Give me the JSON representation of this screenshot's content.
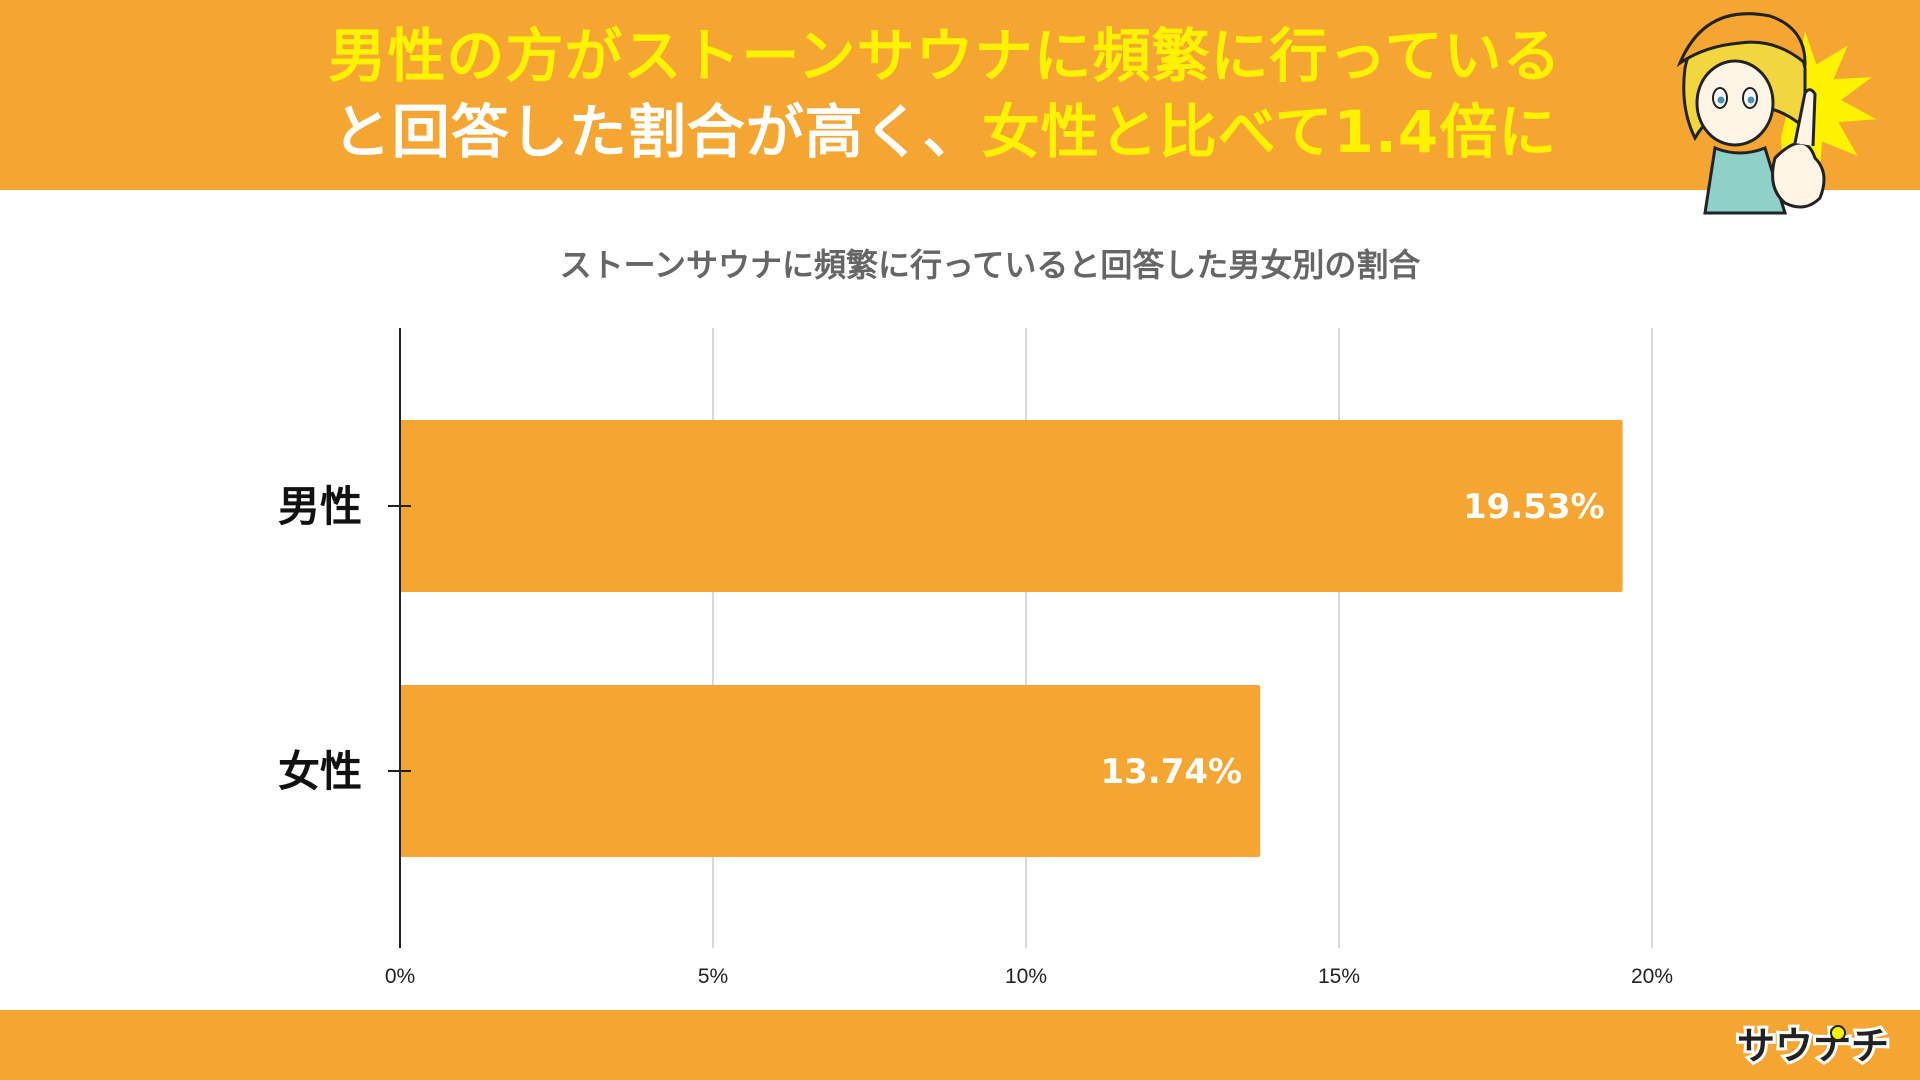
{
  "header": {
    "line1": "男性の方がストーンサウナに頻繁に行っている",
    "line2_white": "と回答した割合が高く、",
    "line2_yellow": "女性と比べて1.4倍に"
  },
  "colors": {
    "accent": "#F4A532",
    "headline_yellow": "#FFF200",
    "title_gray": "#666666"
  },
  "mascot": {
    "icon": "pointing-girl-mascot-icon"
  },
  "logo": {
    "text": "サウナチ",
    "icon": "sauna-logo-icon"
  },
  "chart_data": {
    "type": "bar",
    "orientation": "horizontal",
    "title": "ストーンサウナに頻繁に行っていると回答した男女別の割合",
    "categories": [
      "男性",
      "女性"
    ],
    "values": [
      19.53,
      13.74
    ],
    "value_labels": [
      "19.53%",
      "13.74%"
    ],
    "xlim": [
      0,
      20
    ],
    "xticks": [
      "0%",
      "5%",
      "10%",
      "15%",
      "20%"
    ],
    "xtick_values": [
      0,
      5,
      10,
      15,
      20
    ],
    "grid": true,
    "bar_color": "#F4A532"
  }
}
